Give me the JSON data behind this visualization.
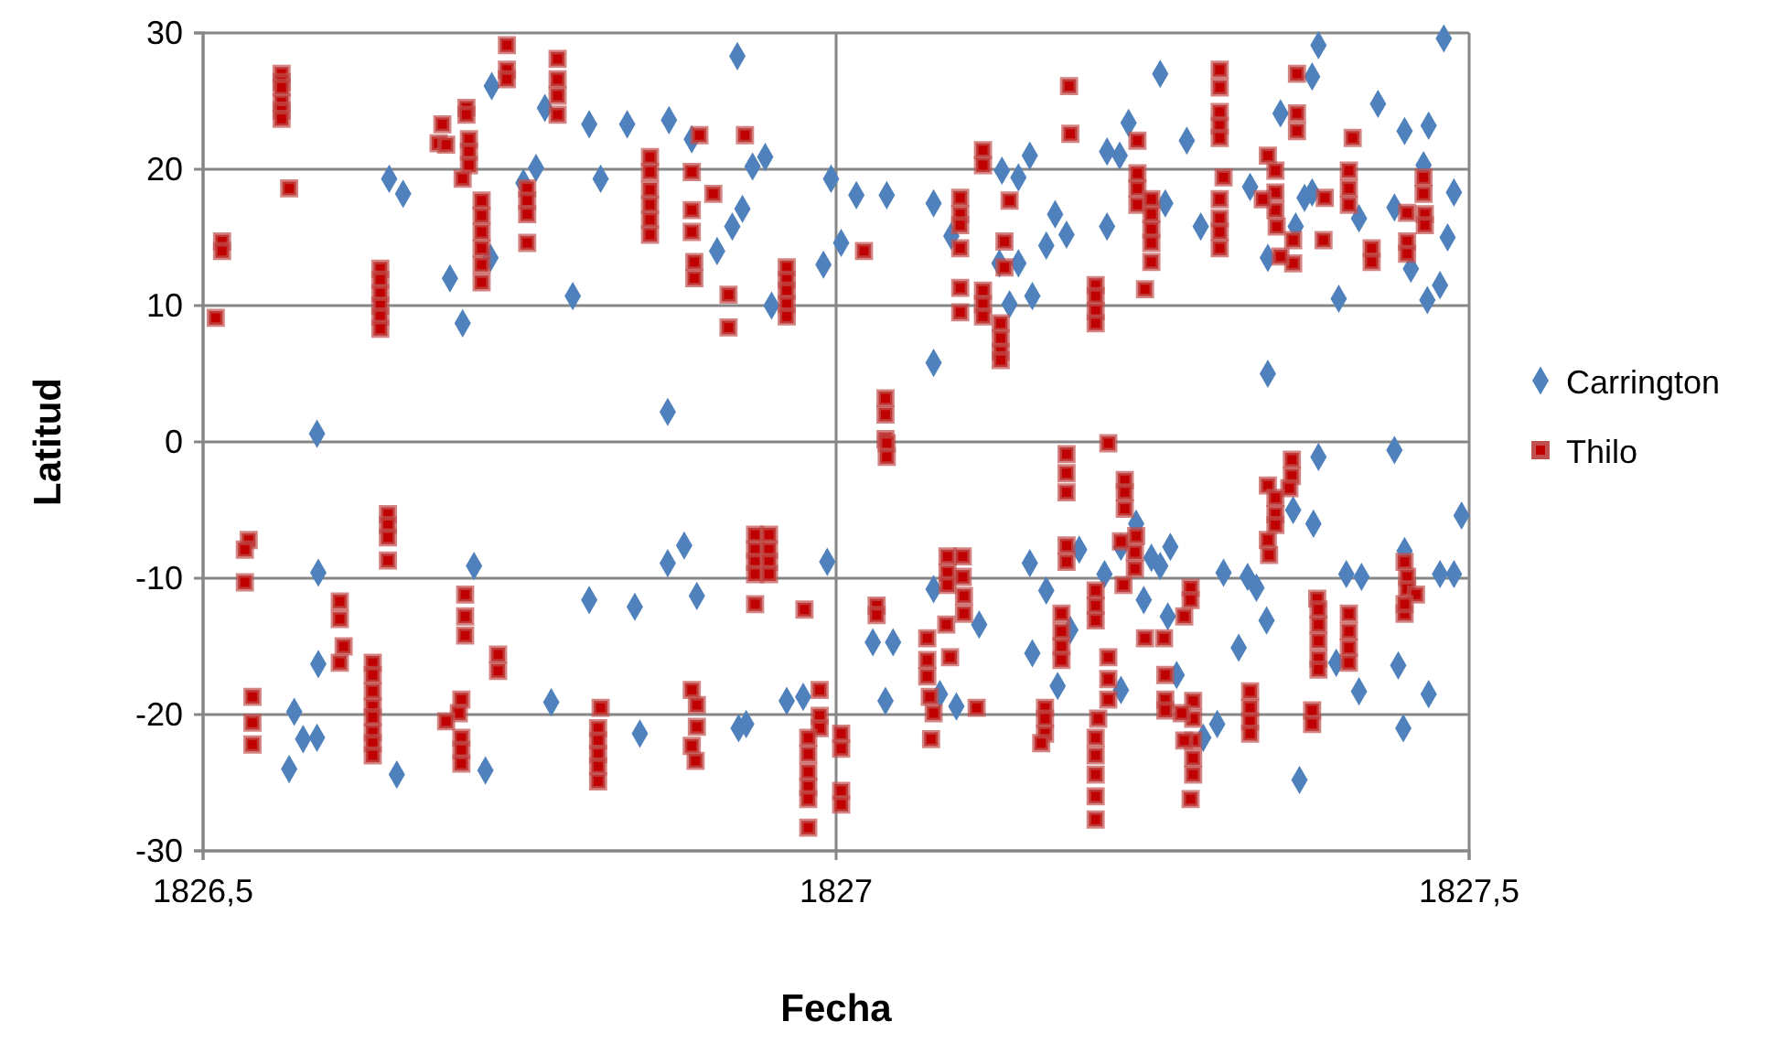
{
  "chart_data": {
    "type": "scatter",
    "xlabel": "Fecha",
    "ylabel": "Latitud",
    "xlim": [
      1826.5,
      1827.5
    ],
    "xticks": [
      {
        "value": 1826.5,
        "label": "1826,5"
      },
      {
        "value": 1827,
        "label": "1827"
      },
      {
        "value": 1827.5,
        "label": "1827,5"
      }
    ],
    "ylim": [
      -30,
      30
    ],
    "yticks": [
      -30,
      -20,
      -10,
      0,
      10,
      20,
      30
    ],
    "grid": true,
    "legend": "right",
    "series": [
      {
        "name": "Carrington",
        "color": "#4f81bd",
        "marker": "diamond",
        "x": [
          1826.922,
          1826.728,
          1826.77,
          1826.805,
          1826.835,
          1826.868,
          1826.886,
          1826.944,
          1826.934,
          1826.763,
          1826.647,
          1826.658,
          1826.996,
          1826.814,
          1826.753,
          1826.926,
          1826.918,
          1826.906,
          1827.004,
          1826.99,
          1826.727,
          1826.695,
          1826.792,
          1826.705,
          1826.949,
          1826.867,
          1826.59,
          1827.381,
          1827.48,
          1827.256,
          1827.376,
          1827.351,
          1827.428,
          1827.231,
          1827.449,
          1827.468,
          1827.277,
          1827.153,
          1827.214,
          1827.224,
          1827.131,
          1827.144,
          1827.016,
          1827.04,
          1827.077,
          1827.464,
          1827.488,
          1827.327,
          1827.37,
          1827.376,
          1827.26,
          1827.441,
          1827.413,
          1827.173,
          1827.214,
          1827.288,
          1827.363,
          1827.091,
          1827.182,
          1827.166,
          1827.483,
          1827.129,
          1827.144,
          1827.341,
          1827.454,
          1827.477,
          1827.137,
          1827.155,
          1827.397,
          1827.467,
          1827.077,
          1827.341,
          1826.591,
          1826.714,
          1826.591,
          1826.572,
          1826.579,
          1826.59,
          1826.568,
          1826.653,
          1826.723,
          1826.775,
          1826.805,
          1826.841,
          1826.867,
          1826.88,
          1826.89,
          1826.845,
          1826.923,
          1826.929,
          1826.961,
          1826.974,
          1826.993,
          1827.381,
          1827.441,
          1827.494,
          1827.237,
          1827.361,
          1827.377,
          1827.192,
          1827.225,
          1827.264,
          1827.249,
          1827.256,
          1827.153,
          1827.212,
          1827.306,
          1827.325,
          1827.332,
          1827.403,
          1827.415,
          1827.449,
          1827.477,
          1827.488,
          1827.077,
          1827.166,
          1827.243,
          1827.262,
          1827.113,
          1827.185,
          1827.34,
          1827.029,
          1827.045,
          1827.155,
          1827.318,
          1827.395,
          1827.444,
          1827.269,
          1827.082,
          1827.175,
          1827.225,
          1827.413,
          1827.468,
          1827.039,
          1827.095,
          1827.301,
          1827.29,
          1827.448,
          1827.366
        ],
        "values": [
          28.3,
          26.1,
          24.5,
          23.3,
          23.3,
          23.6,
          22.2,
          20.9,
          20.2,
          20.1,
          19.3,
          18.2,
          19.3,
          19.3,
          19.0,
          17.1,
          15.8,
          14.0,
          14.6,
          13.0,
          13.5,
          12.0,
          10.7,
          8.7,
          10.0,
          2.2,
          0.6,
          29.1,
          29.6,
          27.0,
          26.8,
          24.1,
          24.8,
          23.4,
          22.8,
          23.2,
          22.1,
          21.0,
          21.3,
          21.0,
          19.9,
          19.4,
          18.1,
          18.1,
          17.5,
          20.3,
          18.3,
          18.7,
          17.9,
          18.3,
          17.5,
          17.2,
          16.4,
          16.7,
          15.8,
          15.8,
          15.8,
          15.1,
          15.2,
          14.4,
          15.0,
          13.1,
          13.1,
          13.5,
          12.7,
          11.5,
          10.1,
          10.7,
          10.5,
          10.4,
          5.8,
          5.0,
          -9.6,
          -9.1,
          -16.3,
          -19.8,
          -21.8,
          -21.7,
          -24.0,
          -24.4,
          -24.1,
          -19.1,
          -11.6,
          -12.1,
          -8.9,
          -7.6,
          -11.3,
          -21.4,
          -21.0,
          -20.7,
          -19.0,
          -18.7,
          -8.8,
          -1.1,
          -0.6,
          -5.4,
          -6.0,
          -5.0,
          -6.0,
          -7.9,
          -7.7,
          -7.7,
          -8.5,
          -9.1,
          -8.9,
          -9.7,
          -9.6,
          -9.9,
          -10.7,
          -9.7,
          -9.9,
          -8.0,
          -9.7,
          -9.7,
          -10.8,
          -10.9,
          -11.6,
          -12.8,
          -13.4,
          -13.8,
          -13.1,
          -14.7,
          -14.7,
          -15.5,
          -15.1,
          -16.2,
          -16.4,
          -17.1,
          -18.5,
          -17.9,
          -18.2,
          -18.3,
          -18.5,
          -19.0,
          -19.4,
          -20.7,
          -21.7,
          -21.0,
          -24.8
        ]
      },
      {
        "name": "Thilo",
        "color": "#c00000",
        "marker": "square",
        "x": [
          1826.562,
          1826.562,
          1826.562,
          1826.562,
          1826.562,
          1826.562,
          1826.568,
          1826.515,
          1826.515,
          1826.51,
          1826.64,
          1826.64,
          1826.64,
          1826.64,
          1826.64,
          1826.64,
          1826.689,
          1826.686,
          1826.692,
          1826.708,
          1826.708,
          1826.71,
          1826.71,
          1826.71,
          1826.705,
          1826.72,
          1826.72,
          1826.72,
          1826.72,
          1826.72,
          1826.72,
          1826.74,
          1826.74,
          1826.74,
          1826.78,
          1826.78,
          1826.78,
          1826.78,
          1826.756,
          1826.756,
          1826.756,
          1826.756,
          1826.853,
          1826.853,
          1826.853,
          1826.853,
          1826.853,
          1826.853,
          1826.892,
          1826.886,
          1826.886,
          1826.886,
          1826.888,
          1826.888,
          1826.928,
          1826.903,
          1826.915,
          1826.915,
          1826.961,
          1826.961,
          1826.961,
          1826.961,
          1826.961,
          1827.184,
          1827.185,
          1827.116,
          1827.116,
          1827.238,
          1827.303,
          1827.303,
          1827.303,
          1827.303,
          1827.303,
          1827.364,
          1827.364,
          1827.364,
          1827.408,
          1827.098,
          1827.098,
          1827.098,
          1827.098,
          1827.098,
          1827.098,
          1827.116,
          1827.116,
          1827.116,
          1827.13,
          1827.13,
          1827.13,
          1827.13,
          1827.137,
          1827.133,
          1827.133,
          1827.022,
          1827.205,
          1827.205,
          1827.205,
          1827.205,
          1827.238,
          1827.238,
          1827.238,
          1827.249,
          1827.249,
          1827.249,
          1827.249,
          1827.249,
          1827.244,
          1827.306,
          1827.303,
          1827.303,
          1827.303,
          1827.303,
          1827.341,
          1827.347,
          1827.347,
          1827.347,
          1827.348,
          1827.337,
          1827.361,
          1827.361,
          1827.351,
          1827.386,
          1827.385,
          1827.405,
          1827.405,
          1827.405,
          1827.423,
          1827.423,
          1827.451,
          1827.451,
          1827.451,
          1827.464,
          1827.464,
          1827.465,
          1827.465,
          1827.039,
          1827.039,
          1827.039,
          1827.04,
          1827.04,
          1826.536,
          1826.533,
          1826.533,
          1826.539,
          1826.539,
          1826.539,
          1826.646,
          1826.646,
          1826.646,
          1826.646,
          1826.608,
          1826.608,
          1826.611,
          1826.608,
          1826.634,
          1826.634,
          1826.634,
          1826.634,
          1826.634,
          1826.634,
          1826.634,
          1826.634,
          1826.707,
          1826.707,
          1826.707,
          1826.733,
          1826.733,
          1826.704,
          1826.702,
          1826.704,
          1826.704,
          1826.704,
          1826.692,
          1826.814,
          1826.812,
          1826.812,
          1826.812,
          1826.812,
          1826.812,
          1826.886,
          1826.89,
          1826.89,
          1826.886,
          1826.889,
          1826.936,
          1826.936,
          1826.936,
          1826.936,
          1826.947,
          1826.947,
          1826.947,
          1826.947,
          1826.936,
          1826.975,
          1826.987,
          1826.987,
          1826.987,
          1826.978,
          1826.978,
          1826.978,
          1826.978,
          1826.978,
          1826.978,
          1827.004,
          1827.004,
          1827.004,
          1827.004,
          1827.182,
          1827.182,
          1827.182,
          1827.215,
          1827.228,
          1827.228,
          1827.228,
          1827.237,
          1827.236,
          1827.236,
          1827.225,
          1827.227,
          1827.36,
          1827.36,
          1827.358,
          1827.341,
          1827.347,
          1827.347,
          1827.347,
          1827.341,
          1827.342,
          1827.032,
          1827.032,
          1827.088,
          1827.088,
          1827.088,
          1827.1,
          1827.1,
          1827.101,
          1827.101,
          1827.087,
          1827.072,
          1827.072,
          1827.072,
          1827.074,
          1827.077,
          1827.075,
          1827.09,
          1827.111,
          1827.178,
          1827.178,
          1827.178,
          1827.178,
          1827.182,
          1827.182,
          1827.165,
          1827.165,
          1827.165,
          1827.162,
          1827.205,
          1827.205,
          1827.205,
          1827.215,
          1827.215,
          1827.215,
          1827.207,
          1827.205,
          1827.205,
          1827.205,
          1827.205,
          1827.205,
          1827.28,
          1827.28,
          1827.275,
          1827.244,
          1827.259,
          1827.26,
          1827.26,
          1827.26,
          1827.282,
          1827.282,
          1827.282,
          1827.282,
          1827.282,
          1827.28,
          1827.273,
          1827.275,
          1827.327,
          1827.327,
          1827.327,
          1827.327,
          1827.376,
          1827.376,
          1827.38,
          1827.381,
          1827.381,
          1827.381,
          1827.381,
          1827.381,
          1827.405,
          1827.405,
          1827.405,
          1827.405,
          1827.449,
          1827.451,
          1827.451,
          1827.458,
          1827.449,
          1827.449
        ],
        "values": [
          27.0,
          26.4,
          26.0,
          24.9,
          24.3,
          23.7,
          18.6,
          14.7,
          14.0,
          9.1,
          12.7,
          11.9,
          10.9,
          10.0,
          9.2,
          8.3,
          23.3,
          21.9,
          21.8,
          24.5,
          24.0,
          22.2,
          21.3,
          20.3,
          19.3,
          17.7,
          16.6,
          15.4,
          14.2,
          13.0,
          11.7,
          29.1,
          27.3,
          26.6,
          28.1,
          26.6,
          25.4,
          24.0,
          18.6,
          17.7,
          16.7,
          14.6,
          20.9,
          19.8,
          18.5,
          17.4,
          16.3,
          15.2,
          22.5,
          19.8,
          17.0,
          15.4,
          13.2,
          12.0,
          22.5,
          18.2,
          10.8,
          8.4,
          12.8,
          11.9,
          11.1,
          10.1,
          9.2,
          26.1,
          22.6,
          21.4,
          20.3,
          22.1,
          27.3,
          26.0,
          24.2,
          23.2,
          22.3,
          27.0,
          24.1,
          22.8,
          22.3,
          17.9,
          16.7,
          15.9,
          14.2,
          11.3,
          9.5,
          11.1,
          10.1,
          9.2,
          8.7,
          7.6,
          6.6,
          6.0,
          17.7,
          14.7,
          12.8,
          14.0,
          11.5,
          10.7,
          9.6,
          8.7,
          19.7,
          18.6,
          17.4,
          17.8,
          16.7,
          15.6,
          14.6,
          13.2,
          11.2,
          19.4,
          17.8,
          16.4,
          15.4,
          14.2,
          21.0,
          19.9,
          18.3,
          17.0,
          15.8,
          17.8,
          14.8,
          13.1,
          13.6,
          17.9,
          14.8,
          19.9,
          18.6,
          17.4,
          14.2,
          13.2,
          16.8,
          14.7,
          13.8,
          19.4,
          18.2,
          16.7,
          15.9,
          3.2,
          2.0,
          0.2,
          -0.1,
          -1.1,
          -7.2,
          -7.9,
          -10.3,
          -18.7,
          -20.6,
          -22.2,
          -5.3,
          -6.1,
          -7.0,
          -8.7,
          -11.7,
          -13.0,
          -15.0,
          -16.2,
          -16.2,
          -17.1,
          -18.3,
          -19.4,
          -20.2,
          -21.3,
          -22.1,
          -23.0,
          -11.2,
          -12.8,
          -14.2,
          -15.6,
          -16.8,
          -18.9,
          -19.9,
          -21.7,
          -22.6,
          -23.6,
          -20.5,
          -19.5,
          -21.0,
          -21.9,
          -22.9,
          -23.8,
          -24.9,
          -18.2,
          -19.3,
          -20.9,
          -22.3,
          -23.4,
          -6.8,
          -7.9,
          -8.8,
          -9.7,
          -6.8,
          -7.9,
          -8.8,
          -9.7,
          -11.9,
          -12.3,
          -18.2,
          -20.1,
          -21.0,
          -21.7,
          -22.9,
          -24.2,
          -25.3,
          -26.2,
          -28.3,
          -21.4,
          -22.5,
          -25.6,
          -26.6,
          -0.9,
          -2.3,
          -3.7,
          -0.1,
          -2.8,
          -3.7,
          -4.9,
          -6.9,
          -8.1,
          -9.3,
          -7.3,
          -10.5,
          -1.3,
          -2.5,
          -3.4,
          -3.2,
          -4.1,
          -5.3,
          -6.1,
          -7.2,
          -8.3,
          -12.0,
          -12.7,
          -8.4,
          -9.6,
          -10.5,
          -8.4,
          -9.9,
          -11.3,
          -12.6,
          -13.4,
          -14.4,
          -16.0,
          -17.2,
          -18.7,
          -19.9,
          -21.8,
          -15.8,
          -19.5,
          -12.6,
          -13.9,
          -15.0,
          -16.0,
          -7.6,
          -8.8,
          -19.5,
          -20.3,
          -21.4,
          -22.1,
          -10.9,
          -12.0,
          -13.1,
          -15.8,
          -17.4,
          -18.9,
          -20.3,
          -21.7,
          -23.0,
          -24.4,
          -26.0,
          -27.7,
          -10.7,
          -11.6,
          -12.8,
          -14.4,
          -14.4,
          -17.1,
          -18.9,
          -19.7,
          -19.0,
          -20.3,
          -21.9,
          -23.2,
          -24.4,
          -26.2,
          -19.9,
          -21.9,
          -18.3,
          -19.5,
          -20.5,
          -21.4,
          -19.7,
          -20.7,
          -11.5,
          -12.3,
          -13.4,
          -14.6,
          -15.9,
          -16.7,
          -12.6,
          -13.9,
          -15.1,
          -16.2,
          -8.8,
          -9.9,
          -10.8,
          -11.2,
          -12.6,
          -11.9
        ]
      }
    ]
  }
}
